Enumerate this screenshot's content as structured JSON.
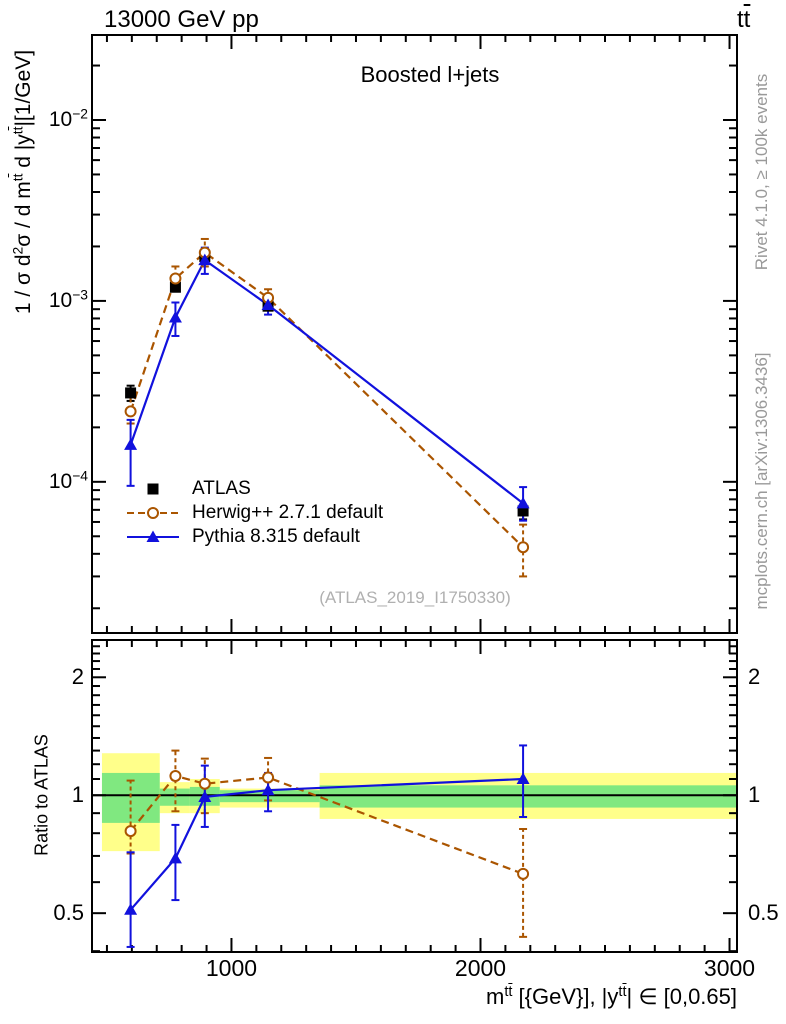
{
  "header": {
    "beam": [
      {
        "t": "13000 GeV pp"
      }
    ],
    "process": [
      {
        "t": "t"
      },
      {
        "t": "t",
        "over": true
      }
    ]
  },
  "main_panel": {
    "title": "Boosted l+jets",
    "ylabel": [
      {
        "t": "1 / "
      },
      {
        "t": "σ"
      },
      {
        "t": " d"
      },
      {
        "t": "2",
        "sup": true
      },
      {
        "t": "σ"
      },
      {
        "t": " /  d m"
      },
      {
        "t": "t",
        "sup": true
      },
      {
        "t": "t",
        "sup": true,
        "over": true
      },
      {
        "t": " d |y"
      },
      {
        "t": "t",
        "sup": true
      },
      {
        "t": "t",
        "sup": true,
        "over": true
      },
      {
        "t": "|[1/GeV]"
      }
    ],
    "watermark": "(ATLAS_2019_I1750330)"
  },
  "ratio_panel": {
    "ylabel": "Ratio to ATLAS"
  },
  "xaxis": {
    "label": [
      {
        "t": "m"
      },
      {
        "t": "t",
        "sup": true
      },
      {
        "t": "t",
        "sup": true,
        "over": true
      },
      {
        "t": " [{GeV}], |y"
      },
      {
        "t": "t",
        "sup": true
      },
      {
        "t": "t",
        "sup": true,
        "over": true
      },
      {
        "t": "| ∈ [0,0.65]"
      }
    ]
  },
  "side_notes": {
    "top": "Rivet 4.1.0, ≥ 100k events",
    "bottom": "mcplots.cern.ch [arXiv:1306.3436]"
  },
  "legend": [
    {
      "label": "ATLAS",
      "marker": "square",
      "line": "none",
      "color": "#000000"
    },
    {
      "label": "Herwig++ 2.7.1 default",
      "marker": "open-circle",
      "line": "dashed",
      "color": "#aa5500"
    },
    {
      "label": "Pythia 8.315 default",
      "marker": "triangle",
      "line": "solid",
      "color": "#1111dd"
    }
  ],
  "colors": {
    "atlas": "#000000",
    "herwig": "#aa5500",
    "pythia": "#1111dd",
    "band_yellow": "#ffff8a",
    "band_green": "#80e880",
    "frame": "#000000",
    "note_gray": "#999999",
    "watermark_gray": "#b0b0b0"
  },
  "chart_data": {
    "type": "line",
    "title": "Boosted l+jets",
    "xlabel": "m^tt [{GeV}], |y^tt| in [0,0.65]",
    "ylabel_main": "1/sigma d^2 sigma / d m^tt d |y^tt| [1/GeV]",
    "ylabel_ratio": "Ratio to ATLAS",
    "x_scale": "linear",
    "xlim": [
      440,
      3030
    ],
    "main_y_scale": "log",
    "main_ylim": [
      1.46e-05,
      0.0295
    ],
    "ratio_y_scale": "log",
    "ratio_ylim": [
      0.398,
      2.49
    ],
    "x_major_ticks": [
      {
        "v": 1000,
        "label": "1000"
      },
      {
        "v": 2000,
        "label": "2000"
      },
      {
        "v": 3000,
        "label": "3000"
      }
    ],
    "x_minor_tick_step": 100,
    "x_minor_tick_start": 500,
    "main_y_ticks": [
      {
        "v": 0.01,
        "base": "10",
        "exp": "−2"
      },
      {
        "v": 0.001,
        "base": "10",
        "exp": "−3"
      },
      {
        "v": 0.0001,
        "base": "10",
        "exp": "−4"
      }
    ],
    "ratio_y_ticks": [
      {
        "v": 2,
        "label": "2"
      },
      {
        "v": 1,
        "label": "1"
      },
      {
        "v": 0.5,
        "label": "0.5"
      }
    ],
    "ratio_y_minor_ticks": [
      0.4,
      0.6,
      0.7,
      0.8,
      0.9,
      1.1,
      1.2,
      1.3,
      1.4,
      1.5,
      1.6,
      1.7,
      1.8,
      1.9,
      2.1,
      2.2,
      2.3,
      2.4
    ],
    "ratio_reference": 1,
    "x": [
      595,
      775,
      893,
      1147,
      2171
    ],
    "series": [
      {
        "name": "ATLAS",
        "marker": "square",
        "line": "none",
        "color": "#000000",
        "y": [
          0.00031,
          0.00119,
          0.00176,
          0.000935,
          6.9e-05
        ],
        "y_lo": [
          0.00028,
          0.00113,
          0.00168,
          0.00089,
          6.2e-05
        ],
        "y_hi": [
          0.00034,
          0.00125,
          0.00185,
          0.00097,
          7.4e-05
        ]
      },
      {
        "name": "Herwig++ 2.7.1 default",
        "marker": "open-circle",
        "line": "dashed",
        "color": "#aa5500",
        "y": [
          0.000245,
          0.00133,
          0.00185,
          0.00104,
          4.35e-05
        ],
        "y_lo": [
          0.00021,
          0.00114,
          0.00155,
          0.00094,
          3e-05
        ],
        "y_hi": [
          0.000295,
          0.00155,
          0.0022,
          0.00116,
          5.8e-05
        ],
        "ratio": [
          0.81,
          1.12,
          1.07,
          1.11,
          0.63
        ],
        "ratio_lo": [
          0.71,
          0.91,
          0.9,
          0.97,
          0.435
        ],
        "ratio_hi": [
          1.09,
          1.3,
          1.24,
          1.245,
          0.82
        ]
      },
      {
        "name": "Pythia 8.315 default",
        "marker": "triangle",
        "line": "solid",
        "color": "#1111dd",
        "y": [
          0.00016,
          0.00081,
          0.00168,
          0.00095,
          7.6e-05
        ],
        "y_lo": [
          9.5e-05,
          0.00064,
          0.00141,
          0.00084,
          6.1e-05
        ],
        "y_hi": [
          0.00022,
          0.00098,
          0.00197,
          0.00107,
          9.35e-05
        ],
        "ratio": [
          0.51,
          0.69,
          0.99,
          1.03,
          1.1
        ],
        "ratio_lo": [
          0.41,
          0.54,
          0.83,
          0.91,
          0.88
        ],
        "ratio_hi": [
          0.715,
          0.84,
          1.19,
          1.14,
          1.34
        ]
      }
    ],
    "bands": [
      {
        "x0": 480,
        "x1": 712,
        "yellow_lo": 0.72,
        "yellow_hi": 1.28,
        "green_lo": 0.85,
        "green_hi": 1.14
      },
      {
        "x0": 712,
        "x1": 833,
        "yellow_lo": 0.9,
        "yellow_hi": 1.08,
        "green_lo": 0.94,
        "green_hi": 1.04
      },
      {
        "x0": 833,
        "x1": 953,
        "yellow_lo": 0.9,
        "yellow_hi": 1.1,
        "green_lo": 0.94,
        "green_hi": 1.05
      },
      {
        "x0": 953,
        "x1": 1354,
        "yellow_lo": 0.93,
        "yellow_hi": 1.04,
        "green_lo": 0.96,
        "green_hi": 1.03
      },
      {
        "x0": 1354,
        "x1": 3030,
        "yellow_lo": 0.87,
        "yellow_hi": 1.14,
        "green_lo": 0.93,
        "green_hi": 1.06
      }
    ],
    "legend_position": "center-left",
    "grid": false
  }
}
